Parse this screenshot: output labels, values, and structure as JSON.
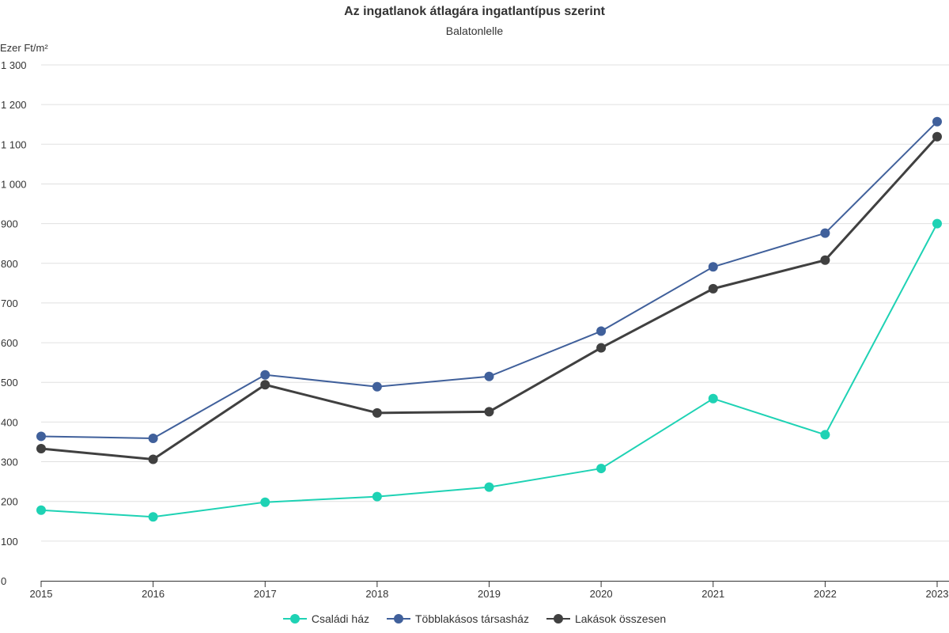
{
  "chart_data": {
    "type": "line",
    "title": "Az ingatlanok átlagára ingatlantípus szerint",
    "subtitle": "Balatonlelle",
    "ylabel": "Ezer Ft/m²",
    "categories": [
      "2015",
      "2016",
      "2017",
      "2018",
      "2019",
      "2020",
      "2021",
      "2022",
      "2023"
    ],
    "ylim": [
      0,
      1300
    ],
    "yticks": [
      0,
      100,
      200,
      300,
      400,
      500,
      600,
      700,
      800,
      900,
      1000,
      1100,
      1200,
      1300
    ],
    "ytick_labels": [
      "0",
      "100",
      "200",
      "300",
      "400",
      "500",
      "600",
      "700",
      "800",
      "900",
      "1 000",
      "1 100",
      "1 200",
      "1 300"
    ],
    "grid": true,
    "legend_position": "bottom-center",
    "series": [
      {
        "name": "Családi ház",
        "color": "#1ed2b4",
        "line_width": 2,
        "values": [
          178,
          161,
          198,
          212,
          236,
          283,
          459,
          368,
          900
        ]
      },
      {
        "name": "Többlakásos társasház",
        "color": "#40609b",
        "line_width": 2,
        "values": [
          364,
          359,
          519,
          489,
          515,
          629,
          791,
          876,
          1157
        ]
      },
      {
        "name": "Lakások összesen",
        "color": "#404040",
        "line_width": 3,
        "values": [
          333,
          306,
          494,
          423,
          426,
          587,
          736,
          808,
          1119
        ]
      }
    ]
  }
}
